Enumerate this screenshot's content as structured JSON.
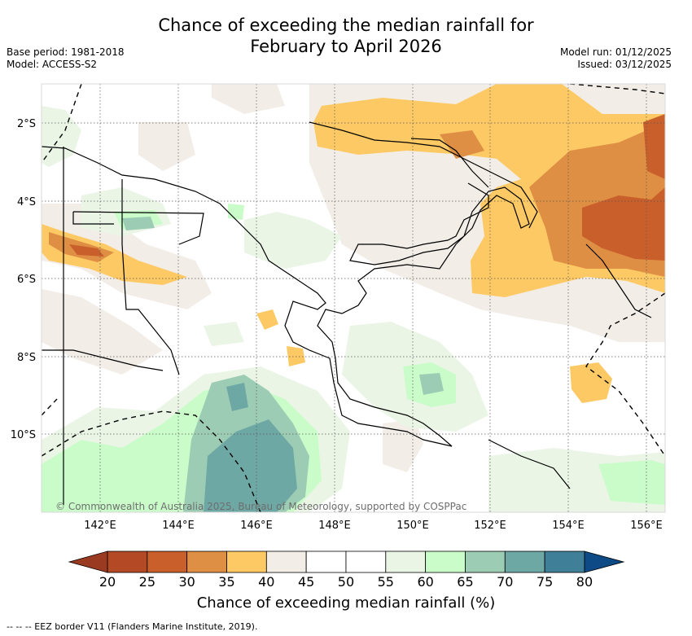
{
  "title_line1": "Chance of exceeding the median rainfall for",
  "title_line2": "February to April 2026",
  "base_period": "Base period: 1981-2018",
  "model": "Model: ACCESS-S2",
  "model_run": "Model run: 01/12/2025",
  "issued": "Issued: 03/12/2025",
  "copyright": "© Commonwealth of Australia 2025, Bureau of Meteorology, supported by COSPPac",
  "lat_labels": [
    "2°S",
    "4°S",
    "6°S",
    "8°S",
    "10°S"
  ],
  "lon_labels": [
    "142°E",
    "144°E",
    "146°E",
    "148°E",
    "150°E",
    "152°E",
    "154°E",
    "156°E"
  ],
  "colorbar": {
    "ticks": [
      "20",
      "25",
      "30",
      "35",
      "40",
      "45",
      "50",
      "55",
      "60",
      "65",
      "70",
      "75",
      "80"
    ],
    "colors": [
      "#b34a25",
      "#c95f2a",
      "#df8f44",
      "#fdc964",
      "#f2ede7",
      "#ffffff",
      "#ffffff",
      "#eaf5e6",
      "#c9fcc9",
      "#9ccdb4",
      "#6ea8a5",
      "#3f7f98"
    ],
    "low_color": "#9a3a20",
    "high_color": "#0e4a86",
    "label": "Chance of exceeding median rainfall (%)"
  },
  "footnote": "--  --  -- EEZ border V11 (Flanders Marine Institute, 2019)."
}
